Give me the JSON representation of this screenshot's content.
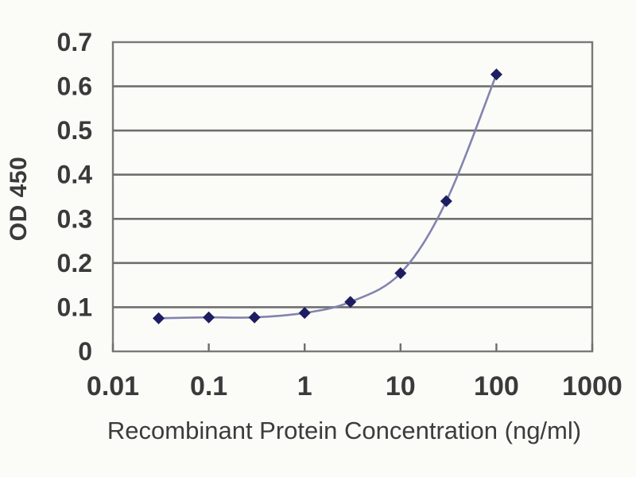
{
  "chart_data": {
    "type": "line",
    "title": "",
    "xlabel": "Recombinant Protein Concentration (ng/ml)",
    "ylabel": "OD 450",
    "x_scale": "log",
    "x": [
      0.03,
      0.1,
      0.3,
      1,
      3,
      10,
      30,
      100
    ],
    "y": [
      0.075,
      0.077,
      0.077,
      0.087,
      0.112,
      0.177,
      0.34,
      0.627
    ],
    "xlim": [
      0.01,
      1000
    ],
    "ylim": [
      0,
      0.7
    ],
    "x_ticks": [
      0.01,
      0.1,
      1,
      10,
      100,
      1000
    ],
    "x_tick_labels": [
      "0.01",
      "0.1",
      "1",
      "10",
      "100",
      "1000"
    ],
    "y_ticks": [
      0,
      0.1,
      0.2,
      0.3,
      0.4,
      0.5,
      0.6,
      0.7
    ],
    "y_tick_labels": [
      "0",
      "0.1",
      "0.2",
      "0.3",
      "0.4",
      "0.5",
      "0.6",
      "0.7"
    ],
    "grid": "horizontal",
    "legend": "none",
    "marker": "diamond",
    "colors": {
      "marker": "#1d1d62",
      "line": "#8383b0",
      "grid": "#6f6f6f",
      "border": "#797979",
      "text": "#3a3a3a",
      "background": "#fbfbf8"
    }
  }
}
